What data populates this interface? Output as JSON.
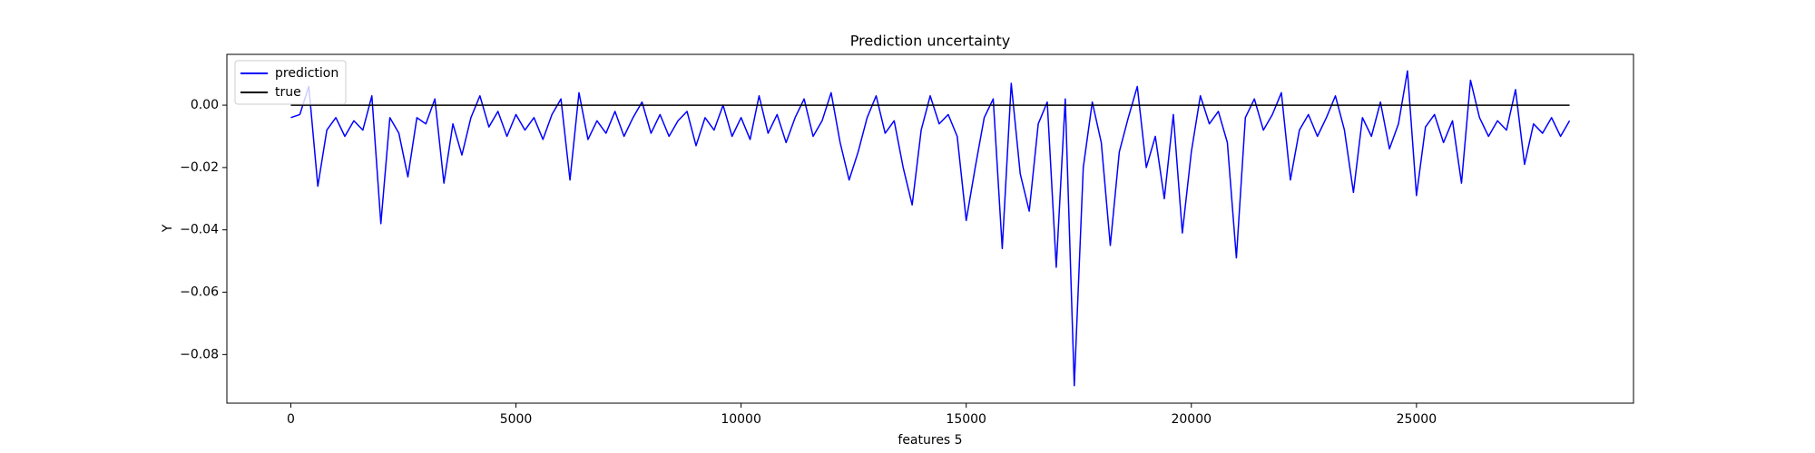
{
  "chart_data": {
    "type": "line",
    "title": "Prediction uncertainty",
    "xlabel": "features 5",
    "ylabel": "Y",
    "legend": "upper left",
    "xlim": [
      -1420,
      29820
    ],
    "ylim": [
      -0.0956,
      0.0163
    ],
    "xticks": [
      0,
      5000,
      10000,
      15000,
      20000,
      25000
    ],
    "yticks": [
      {
        "value": -0.08,
        "label": "−0.08"
      },
      {
        "value": -0.06,
        "label": "−0.06"
      },
      {
        "value": -0.04,
        "label": "−0.04"
      },
      {
        "value": -0.02,
        "label": "−0.02"
      },
      {
        "value": 0,
        "label": "0.00"
      }
    ],
    "series": [
      {
        "name": "prediction",
        "color": "#0000ff",
        "x": [
          0,
          200,
          400,
          600,
          800,
          1000,
          1200,
          1400,
          1600,
          1800,
          2000,
          2200,
          2400,
          2600,
          2800,
          3000,
          3200,
          3400,
          3600,
          3800,
          4000,
          4200,
          4400,
          4600,
          4800,
          5000,
          5200,
          5400,
          5600,
          5800,
          6000,
          6200,
          6400,
          6600,
          6800,
          7000,
          7200,
          7400,
          7600,
          7800,
          8000,
          8200,
          8400,
          8600,
          8800,
          9000,
          9200,
          9400,
          9600,
          9800,
          10000,
          10200,
          10400,
          10600,
          10800,
          11000,
          11200,
          11400,
          11600,
          11800,
          12000,
          12200,
          12400,
          12600,
          12800,
          13000,
          13200,
          13400,
          13600,
          13800,
          14000,
          14200,
          14400,
          14600,
          14800,
          15000,
          15200,
          15400,
          15600,
          15800,
          16000,
          16200,
          16400,
          16600,
          16800,
          17000,
          17200,
          17400,
          17600,
          17800,
          18000,
          18200,
          18400,
          18600,
          18800,
          19000,
          19200,
          19400,
          19600,
          19800,
          20000,
          20200,
          20400,
          20600,
          20800,
          21000,
          21200,
          21400,
          21600,
          21800,
          22000,
          22200,
          22400,
          22600,
          22800,
          23000,
          23200,
          23400,
          23600,
          23800,
          24000,
          24200,
          24400,
          24600,
          24800,
          25000,
          25200,
          25400,
          25600,
          25800,
          26000,
          26200,
          26400,
          26600,
          26800,
          27000,
          27200,
          27400,
          27600,
          27800,
          28000,
          28200,
          28400
        ],
        "values": [
          -0.004,
          -0.003,
          0.006,
          -0.026,
          -0.008,
          -0.004,
          -0.01,
          -0.005,
          -0.008,
          0.003,
          -0.038,
          -0.004,
          -0.009,
          -0.023,
          -0.004,
          -0.006,
          0.002,
          -0.025,
          -0.006,
          -0.016,
          -0.004,
          0.003,
          -0.007,
          -0.002,
          -0.01,
          -0.003,
          -0.008,
          -0.004,
          -0.011,
          -0.003,
          0.002,
          -0.024,
          0.004,
          -0.011,
          -0.005,
          -0.009,
          -0.002,
          -0.01,
          -0.004,
          0.001,
          -0.009,
          -0.003,
          -0.01,
          -0.005,
          -0.002,
          -0.013,
          -0.004,
          -0.008,
          0.0,
          -0.01,
          -0.004,
          -0.011,
          0.003,
          -0.009,
          -0.003,
          -0.012,
          -0.004,
          0.002,
          -0.01,
          -0.005,
          0.004,
          -0.012,
          -0.024,
          -0.015,
          -0.004,
          0.003,
          -0.009,
          -0.005,
          -0.02,
          -0.032,
          -0.008,
          0.003,
          -0.006,
          -0.003,
          -0.01,
          -0.037,
          -0.02,
          -0.004,
          0.002,
          -0.046,
          0.007,
          -0.022,
          -0.034,
          -0.006,
          0.001,
          -0.052,
          0.002,
          -0.09,
          -0.02,
          0.001,
          -0.012,
          -0.045,
          -0.015,
          -0.004,
          0.006,
          -0.02,
          -0.01,
          -0.03,
          -0.003,
          -0.041,
          -0.015,
          0.003,
          -0.006,
          -0.002,
          -0.012,
          -0.049,
          -0.004,
          0.002,
          -0.008,
          -0.003,
          0.004,
          -0.024,
          -0.008,
          -0.003,
          -0.01,
          -0.004,
          0.003,
          -0.008,
          -0.028,
          -0.004,
          -0.01,
          0.001,
          -0.014,
          -0.006,
          0.011,
          -0.029,
          -0.007,
          -0.003,
          -0.012,
          -0.005,
          -0.025,
          0.008,
          -0.004,
          -0.01,
          -0.005,
          -0.008,
          0.005,
          -0.019,
          -0.006,
          -0.009,
          -0.004,
          -0.01,
          -0.005
        ]
      },
      {
        "name": "true",
        "color": "#000000",
        "x": [
          0,
          28400
        ],
        "values": [
          0,
          0
        ]
      }
    ]
  }
}
